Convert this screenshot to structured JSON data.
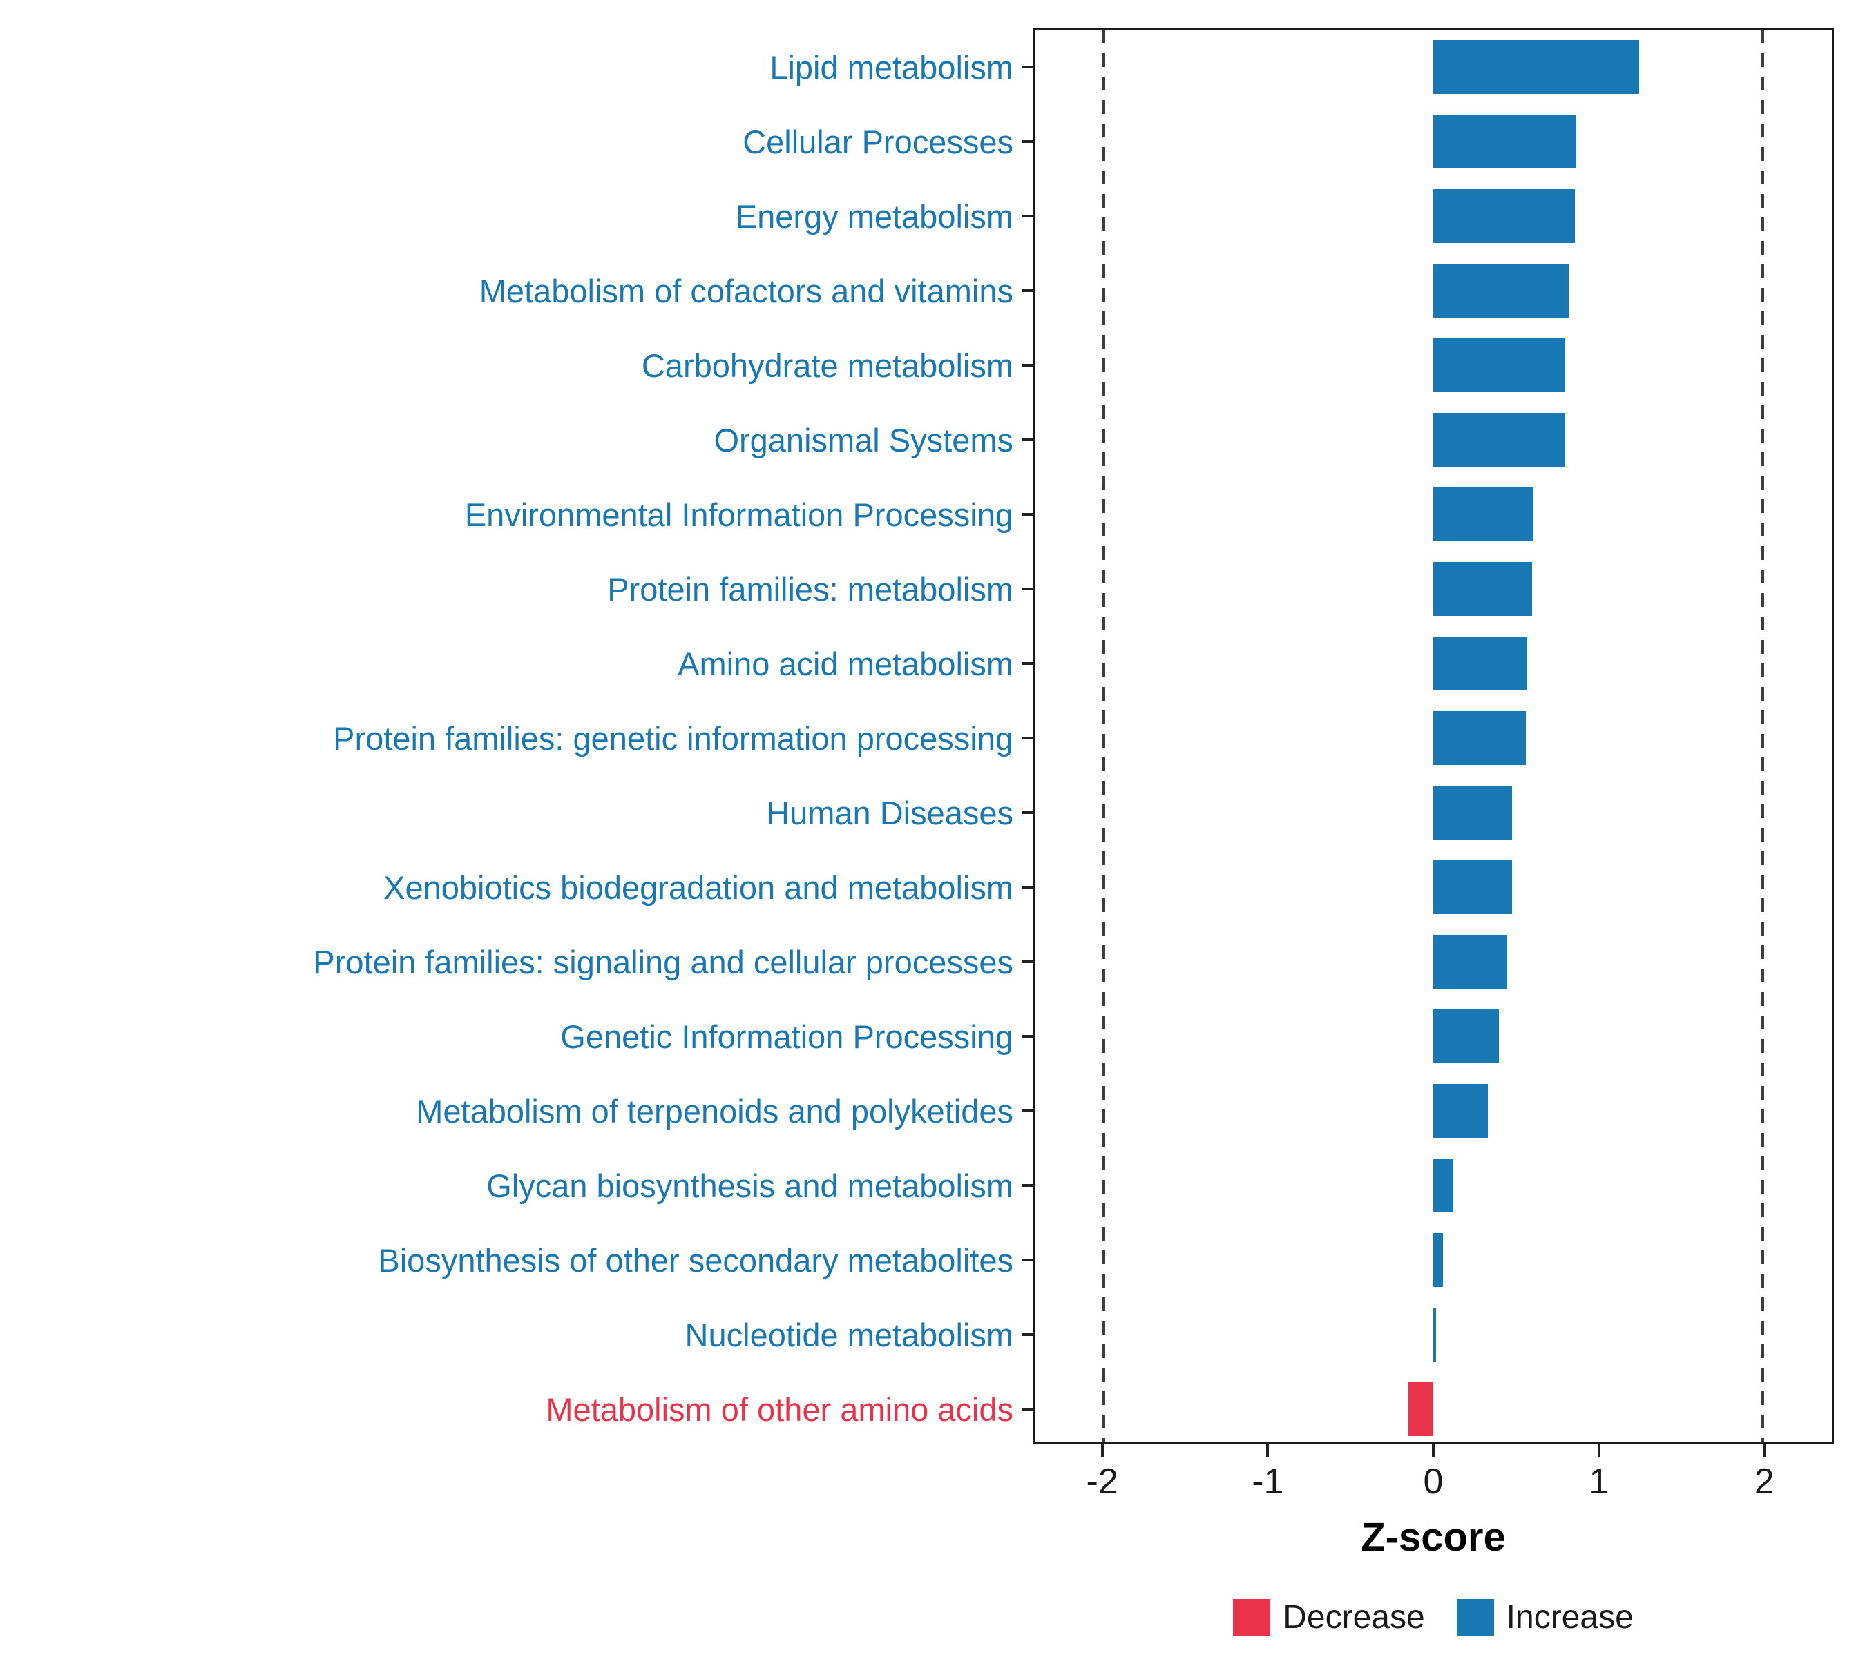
{
  "chart_data": {
    "type": "bar",
    "orientation": "horizontal",
    "title": "",
    "xlabel": "Z-score",
    "ylabel": "",
    "xlim": [
      -2.42,
      2.42
    ],
    "xticks": [
      -2,
      -1,
      0,
      1,
      2
    ],
    "xtick_labels": [
      "-2",
      "-1",
      "0",
      "1",
      "2"
    ],
    "reference_lines": [
      -2,
      2
    ],
    "grid": false,
    "legend_position": "bottom",
    "categories": [
      "Lipid metabolism",
      "Cellular Processes",
      "Energy metabolism",
      "Metabolism of cofactors and vitamins",
      "Carbohydrate metabolism",
      "Organismal Systems",
      "Environmental Information Processing",
      "Protein families: metabolism",
      "Amino acid metabolism",
      "Protein families: genetic information processing",
      "Human Diseases",
      "Xenobiotics biodegradation and metabolism",
      "Protein families: signaling and cellular processes",
      "Genetic Information Processing",
      "Metabolism of terpenoids and polyketides",
      "Glycan biosynthesis and metabolism",
      "Biosynthesis of other secondary metabolites",
      "Nucleotide metabolism",
      "Metabolism of other amino acids"
    ],
    "values": [
      1.25,
      0.87,
      0.86,
      0.82,
      0.8,
      0.8,
      0.61,
      0.6,
      0.57,
      0.56,
      0.48,
      0.48,
      0.45,
      0.4,
      0.33,
      0.12,
      0.06,
      0.015,
      -0.15
    ],
    "colors": {
      "increase": "#1878b4",
      "decrease": "#e8334a",
      "reference_line": "#3d3d3d",
      "panel_border": "#1a1a1a"
    },
    "legend": [
      {
        "label": "Decrease",
        "color": "#e8334a"
      },
      {
        "label": "Increase",
        "color": "#1878b4"
      }
    ]
  }
}
